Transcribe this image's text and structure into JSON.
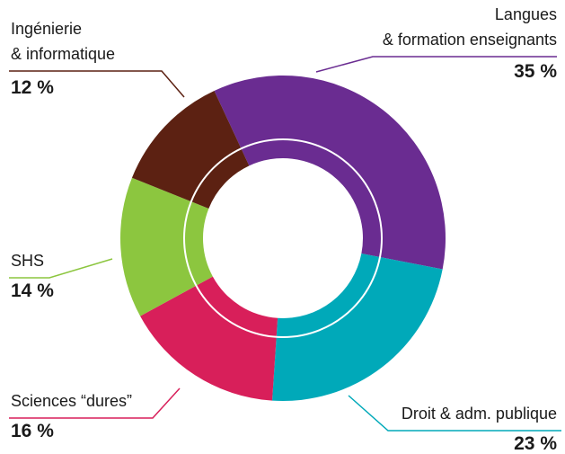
{
  "chart_data": {
    "type": "pie",
    "categories": [
      [
        "Langues",
        "& formation enseignants"
      ],
      [
        "Droit & adm. publique"
      ],
      [
        "Sciences “dures”"
      ],
      [
        "SHS"
      ],
      [
        "Ingénierie",
        "& informatique"
      ]
    ],
    "values": [
      35,
      23,
      16,
      14,
      12
    ],
    "value_labels": [
      "35 %",
      "23 %",
      "16 %",
      "14 %",
      "12 %"
    ],
    "colors": [
      "#6a2c91",
      "#00a9b9",
      "#d81f5a",
      "#8cc63f",
      "#5c2112"
    ]
  }
}
